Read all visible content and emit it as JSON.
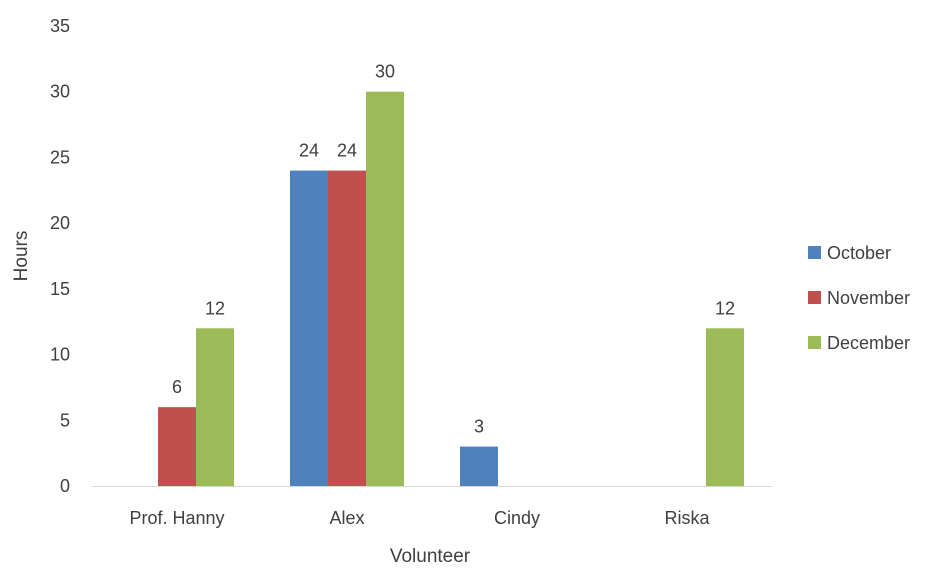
{
  "chart_data": {
    "type": "bar",
    "title": "",
    "xlabel": "Volunteer",
    "ylabel": "Hours",
    "ylim": [
      0,
      35
    ],
    "yticks": [
      0,
      5,
      10,
      15,
      20,
      25,
      30,
      35
    ],
    "grid": false,
    "legend_position": "right",
    "categories": [
      "Prof. Hanny",
      "Alex",
      "Cindy",
      "Riska"
    ],
    "series": [
      {
        "name": "October",
        "color": "#4F81BD",
        "values": [
          0,
          24,
          3,
          0
        ]
      },
      {
        "name": "November",
        "color": "#C0504D",
        "values": [
          6,
          24,
          0,
          0
        ]
      },
      {
        "name": "December",
        "color": "#9BBB59",
        "values": [
          12,
          30,
          0,
          12
        ]
      }
    ]
  }
}
